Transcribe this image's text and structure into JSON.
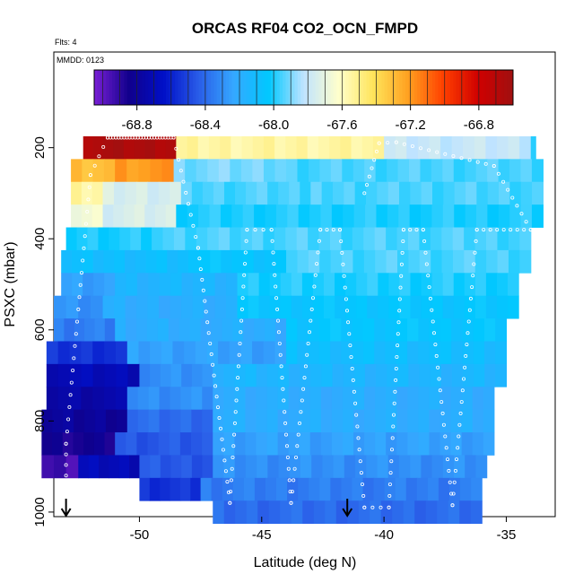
{
  "chart_data": {
    "type": "heatmap",
    "title": "ORCAS RF04 CO2_OCN_FMPD",
    "flights_label": "Flts: 4",
    "date_label": "MMDD: 0123",
    "xlabel": "Latitude (deg N)",
    "ylabel": "PSXC (mbar)",
    "xlim": [
      -53.5,
      -33
    ],
    "ylim": [
      1010,
      -10
    ],
    "x_ticks": [
      -50,
      -45,
      -40,
      -35
    ],
    "x_tick_labels": [
      "-50",
      "-45",
      "-40",
      "-35"
    ],
    "y_ticks": [
      200,
      400,
      600,
      800,
      1000
    ],
    "y_tick_labels": [
      "200",
      "400",
      "600",
      "800",
      "1000"
    ],
    "colorbar": {
      "range": [
        -69.05,
        -66.6
      ],
      "ticks": [
        -68.8,
        -68.4,
        -68.0,
        -67.6,
        -67.2,
        -66.8
      ],
      "tick_labels": [
        "-68.8",
        "-68.4",
        "-68.0",
        "-67.6",
        "-67.2",
        "-66.8"
      ],
      "colors": [
        "#7a1fd6",
        "#10008c",
        "#0010c8",
        "#2a5de8",
        "#35a8ff",
        "#00c8ff",
        "#bfe3ff",
        "#ffffcc",
        "#ffe45a",
        "#ffa020",
        "#ff4000",
        "#d00000",
        "#a01010"
      ]
    },
    "bands": [
      {
        "p": 200,
        "segs": [
          [
            -52.3,
            -51.5,
            -66.7
          ],
          [
            -51.5,
            -48.5,
            -66.65
          ],
          [
            -48.5,
            -40,
            -67.55
          ],
          [
            -40,
            -34,
            -67.8
          ],
          [
            -34,
            -33.8,
            -68.0
          ]
        ]
      },
      {
        "p": 250,
        "segs": [
          [
            -52.8,
            -51.0,
            -67.3
          ],
          [
            -51.0,
            -48.6,
            -67.2
          ],
          [
            -48.6,
            -44,
            -67.9
          ],
          [
            -44,
            -33.5,
            -67.95
          ]
        ]
      },
      {
        "p": 300,
        "segs": [
          [
            -52.8,
            -51.5,
            -67.55
          ],
          [
            -51.5,
            -48.3,
            -67.75
          ],
          [
            -48.3,
            -43,
            -67.95
          ],
          [
            -43,
            -33.5,
            -67.95
          ]
        ]
      },
      {
        "p": 350,
        "segs": [
          [
            -52.8,
            -51.5,
            -67.65
          ],
          [
            -51.5,
            -48.5,
            -67.75
          ],
          [
            -48.5,
            -33.5,
            -68.0
          ]
        ]
      },
      {
        "p": 400,
        "segs": [
          [
            -53.0,
            -49.5,
            -68.0
          ],
          [
            -49.5,
            -34.0,
            -67.95
          ]
        ]
      },
      {
        "p": 450,
        "segs": [
          [
            -53.2,
            -48.0,
            -68.1
          ],
          [
            -48.0,
            -44.0,
            -68.05
          ],
          [
            -44.0,
            -34.0,
            -67.95
          ]
        ]
      },
      {
        "p": 500,
        "segs": [
          [
            -53.2,
            -51.0,
            -68.25
          ],
          [
            -51.0,
            -46.0,
            -68.15
          ],
          [
            -46.0,
            -34.5,
            -68.0
          ]
        ]
      },
      {
        "p": 550,
        "segs": [
          [
            -53.5,
            -51.5,
            -68.3
          ],
          [
            -51.5,
            -46.0,
            -68.2
          ],
          [
            -46.0,
            -34.5,
            -68.05
          ]
        ]
      },
      {
        "p": 600,
        "segs": [
          [
            -53.5,
            -51.0,
            -68.35
          ],
          [
            -51.0,
            -44.0,
            -68.2
          ],
          [
            -44.0,
            -35.0,
            -68.05
          ]
        ]
      },
      {
        "p": 650,
        "segs": [
          [
            -53.8,
            -50.5,
            -68.55
          ],
          [
            -50.5,
            -44.0,
            -68.25
          ],
          [
            -44.0,
            -35.0,
            -68.1
          ]
        ]
      },
      {
        "p": 700,
        "segs": [
          [
            -53.8,
            -50.0,
            -68.7
          ],
          [
            -50.0,
            -47.0,
            -68.3
          ],
          [
            -47.0,
            -35.0,
            -68.15
          ]
        ]
      },
      {
        "p": 750,
        "segs": [
          [
            -53.8,
            -50.5,
            -68.75
          ],
          [
            -50.5,
            -47.0,
            -68.3
          ],
          [
            -47.0,
            -35.5,
            -68.2
          ]
        ]
      },
      {
        "p": 800,
        "segs": [
          [
            -54.0,
            -50.5,
            -68.8
          ],
          [
            -50.5,
            -47.0,
            -68.4
          ],
          [
            -47.0,
            -35.5,
            -68.2
          ]
        ]
      },
      {
        "p": 850,
        "segs": [
          [
            -54.0,
            -51.0,
            -68.85
          ],
          [
            -51.0,
            -47.0,
            -68.45
          ],
          [
            -47.0,
            -35.5,
            -68.25
          ]
        ]
      },
      {
        "p": 900,
        "segs": [
          [
            -54.0,
            -52.5,
            -68.95
          ],
          [
            -52.5,
            -50.0,
            -68.7
          ],
          [
            -50.0,
            -47.0,
            -68.45
          ],
          [
            -47.0,
            -35.8,
            -68.3
          ]
        ]
      },
      {
        "p": 950,
        "segs": [
          [
            -50.0,
            -47.5,
            -68.55
          ],
          [
            -47.5,
            -36.0,
            -68.35
          ]
        ]
      },
      {
        "p": 1000,
        "segs": [
          [
            -47.0,
            -36.0,
            -68.4
          ]
        ]
      }
    ],
    "arrows_x": [
      -53,
      -41.5
    ]
  }
}
